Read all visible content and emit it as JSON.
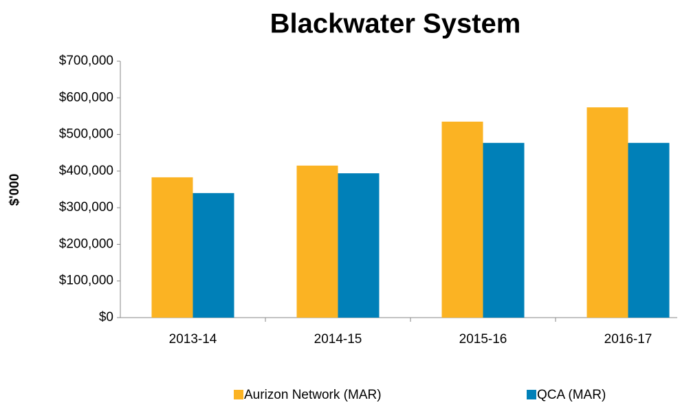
{
  "chart_data": {
    "type": "bar",
    "title": "Blackwater System",
    "y_label": "$'000",
    "categories": [
      "2013-14",
      "2014-15",
      "2015-16",
      "2016-17"
    ],
    "series": [
      {
        "name": "Aurizon Network (MAR)",
        "color": "#fbb323",
        "values": [
          383000,
          415000,
          535000,
          574000
        ]
      },
      {
        "name": "QCA (MAR)",
        "color": "#0080b8",
        "values": [
          340000,
          394000,
          477000,
          477000
        ]
      }
    ],
    "ylim": [
      0,
      700000
    ],
    "yticks": [
      {
        "value": 0,
        "label": "$0"
      },
      {
        "value": 100000,
        "label": "$100,000"
      },
      {
        "value": 200000,
        "label": "$200,000"
      },
      {
        "value": 300000,
        "label": "$300,000"
      },
      {
        "value": 400000,
        "label": "$400,000"
      },
      {
        "value": 500000,
        "label": "$500,000"
      },
      {
        "value": 600000,
        "label": "$600,000"
      },
      {
        "value": 700000,
        "label": "$700,000"
      }
    ],
    "grid": false,
    "legend": "bottom"
  }
}
